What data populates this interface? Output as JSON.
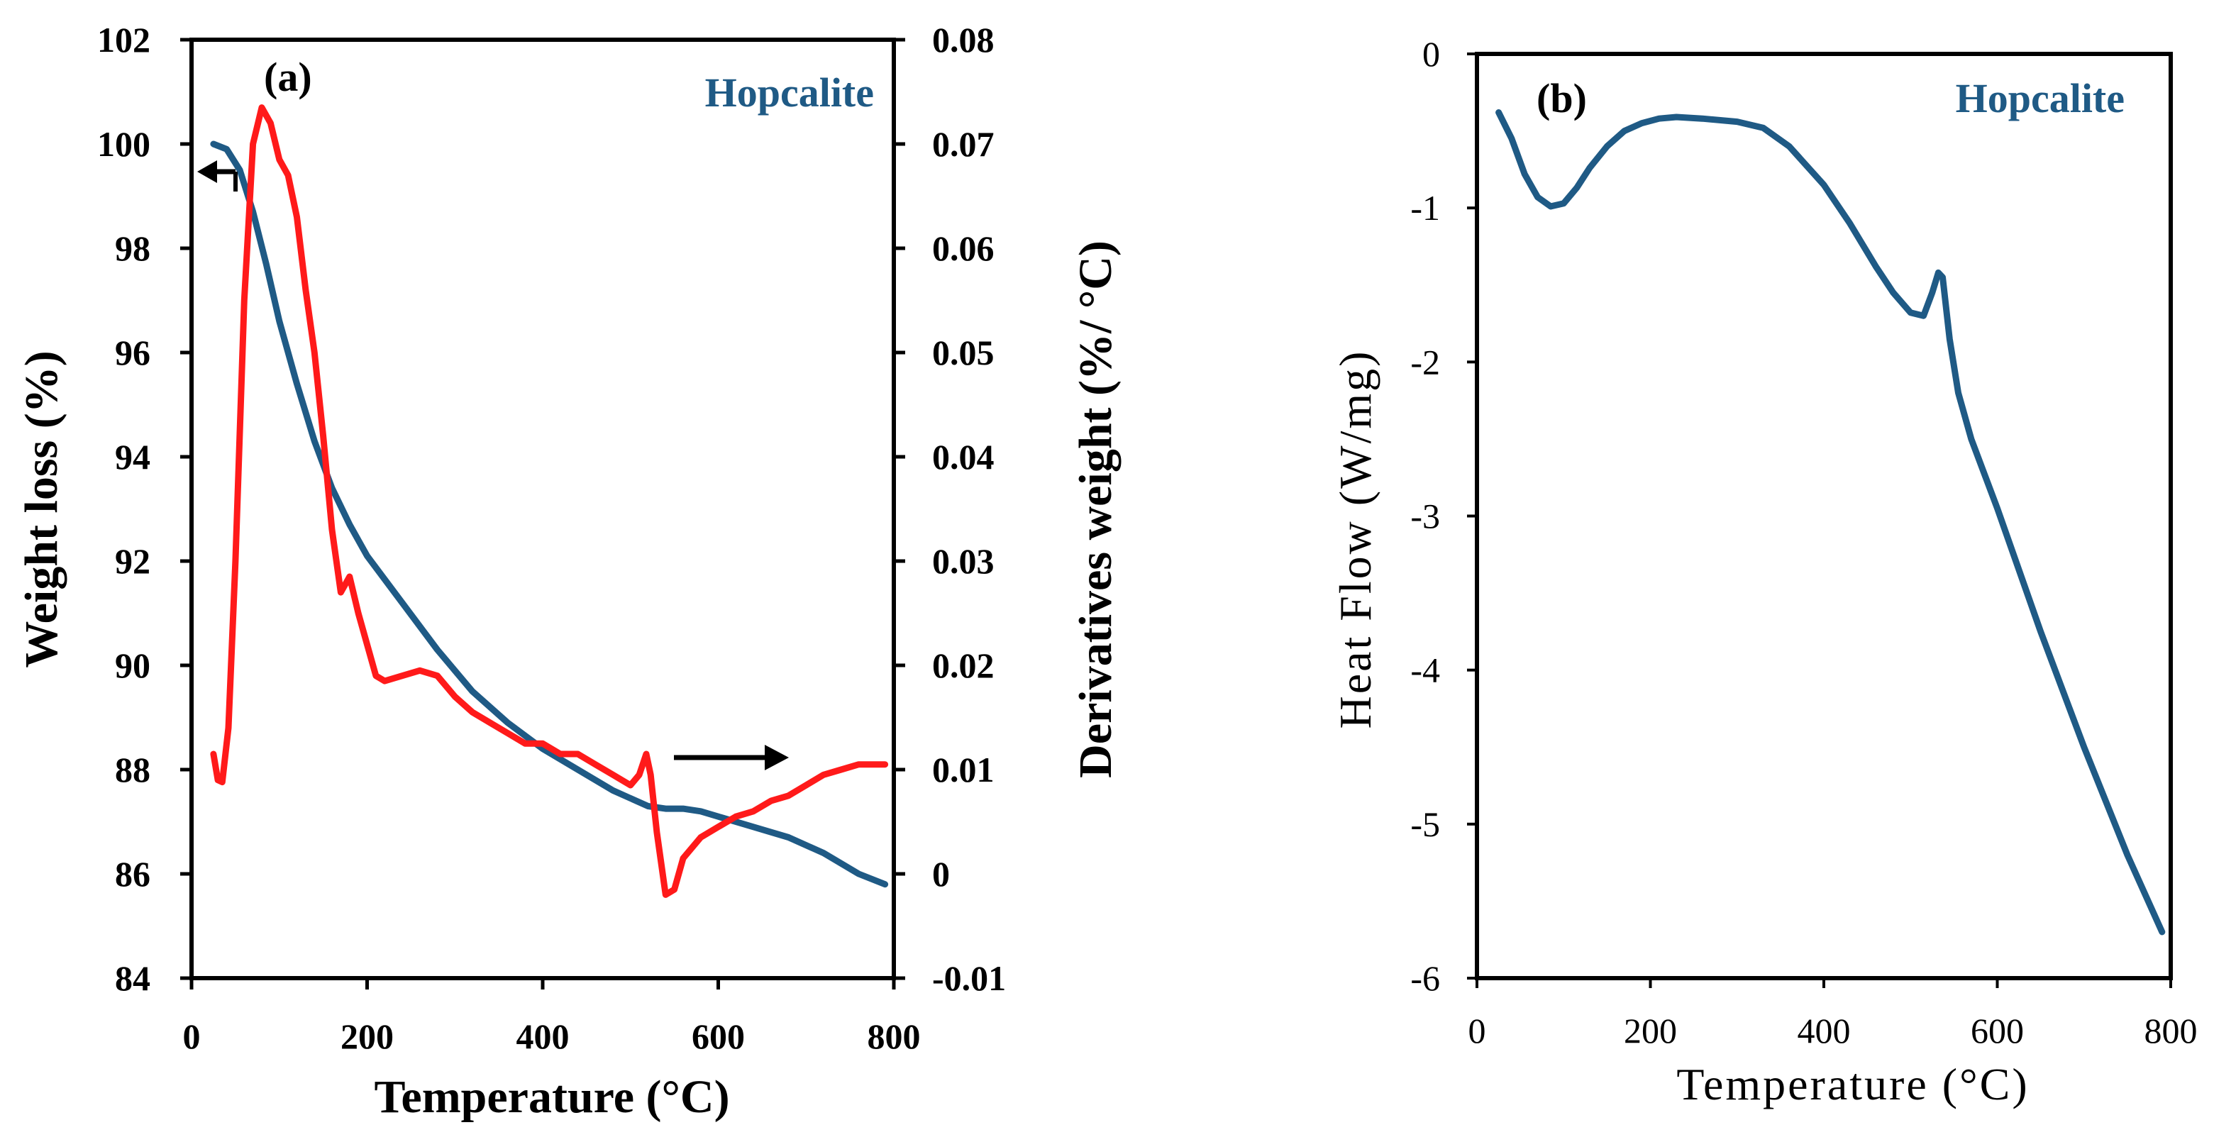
{
  "chart_data": [
    {
      "panel_label": "(a)",
      "type": "line",
      "sample_label": "Hopcalite",
      "xlabel": "Temperature (°C)",
      "ylabel": "Weight loss (%)",
      "y2label": "Derivatives weight (%/ °C)",
      "xlim": [
        0,
        800
      ],
      "ylim": [
        84,
        102
      ],
      "y2lim": [
        -0.01,
        0.08
      ],
      "x_ticks": [
        "0",
        "200",
        "400",
        "600",
        "800"
      ],
      "y_ticks": [
        "84",
        "86",
        "88",
        "90",
        "92",
        "94",
        "96",
        "98",
        "100",
        "102"
      ],
      "y2_ticks": [
        "-0.01",
        "0",
        "0.01",
        "0.02",
        "0.03",
        "0.04",
        "0.05",
        "0.06",
        "0.07",
        "0.08"
      ],
      "colors": {
        "weight": "#1f5a85",
        "derivative": "#ff1a1a"
      },
      "series": [
        {
          "name": "Weight loss",
          "axis": "left",
          "x": [
            25,
            40,
            55,
            70,
            85,
            100,
            120,
            140,
            160,
            180,
            200,
            240,
            280,
            320,
            360,
            400,
            440,
            480,
            520,
            540,
            560,
            580,
            600,
            640,
            680,
            720,
            760,
            790
          ],
          "y": [
            100.0,
            99.9,
            99.5,
            98.7,
            97.7,
            96.6,
            95.4,
            94.3,
            93.4,
            92.7,
            92.1,
            91.2,
            90.3,
            89.5,
            88.9,
            88.4,
            88.0,
            87.6,
            87.3,
            87.25,
            87.25,
            87.2,
            87.1,
            86.9,
            86.7,
            86.4,
            86.0,
            85.8
          ]
        },
        {
          "name": "Derivative weight",
          "axis": "right",
          "x": [
            25,
            30,
            35,
            42,
            50,
            60,
            70,
            80,
            90,
            100,
            110,
            120,
            130,
            140,
            150,
            160,
            170,
            180,
            190,
            200,
            210,
            220,
            240,
            260,
            280,
            300,
            320,
            340,
            360,
            380,
            400,
            420,
            440,
            460,
            480,
            500,
            510,
            518,
            523,
            530,
            540,
            550,
            560,
            580,
            600,
            620,
            640,
            660,
            680,
            700,
            720,
            740,
            760,
            780,
            790
          ],
          "y": [
            0.0115,
            0.009,
            0.0088,
            0.014,
            0.03,
            0.055,
            0.07,
            0.0735,
            0.072,
            0.0685,
            0.067,
            0.063,
            0.056,
            0.05,
            0.042,
            0.033,
            0.027,
            0.0285,
            0.025,
            0.022,
            0.019,
            0.0185,
            0.019,
            0.0195,
            0.019,
            0.017,
            0.0155,
            0.0145,
            0.0135,
            0.0125,
            0.0125,
            0.0115,
            0.0115,
            0.0105,
            0.0095,
            0.0085,
            0.0095,
            0.0115,
            0.0095,
            0.004,
            -0.002,
            -0.0015,
            0.0015,
            0.0035,
            0.0045,
            0.0055,
            0.006,
            0.007,
            0.0075,
            0.0085,
            0.0095,
            0.01,
            0.0105,
            0.0105,
            0.0105
          ]
        }
      ],
      "annotations": [
        {
          "type": "arrow",
          "direction": "left",
          "meaning": "weight-loss curve uses left axis"
        },
        {
          "type": "arrow",
          "direction": "right",
          "meaning": "derivative curve uses right axis"
        }
      ]
    },
    {
      "panel_label": "(b)",
      "type": "line",
      "sample_label": "Hopcalite",
      "xlabel": "Temperature (°C)",
      "ylabel": "Heat Flow (W/mg)",
      "xlim": [
        0,
        800
      ],
      "ylim": [
        -6,
        0
      ],
      "x_ticks": [
        "0",
        "200",
        "400",
        "600",
        "800"
      ],
      "y_ticks": [
        "0",
        "-1",
        "-2",
        "-3",
        "-4",
        "-5",
        "-6"
      ],
      "colors": {
        "heat_flow": "#1f5a85"
      },
      "series": [
        {
          "name": "Heat Flow",
          "x": [
            25,
            40,
            55,
            70,
            85,
            100,
            115,
            130,
            150,
            170,
            190,
            210,
            230,
            260,
            300,
            330,
            360,
            400,
            430,
            460,
            480,
            500,
            515,
            525,
            532,
            537,
            545,
            555,
            570,
            600,
            650,
            700,
            750,
            790
          ],
          "y": [
            -0.38,
            -0.55,
            -0.78,
            -0.93,
            -0.99,
            -0.97,
            -0.87,
            -0.74,
            -0.6,
            -0.5,
            -0.45,
            -0.42,
            -0.41,
            -0.42,
            -0.44,
            -0.48,
            -0.6,
            -0.85,
            -1.1,
            -1.38,
            -1.55,
            -1.68,
            -1.7,
            -1.55,
            -1.42,
            -1.45,
            -1.85,
            -2.2,
            -2.5,
            -2.95,
            -3.75,
            -4.5,
            -5.2,
            -5.7
          ]
        }
      ]
    }
  ]
}
